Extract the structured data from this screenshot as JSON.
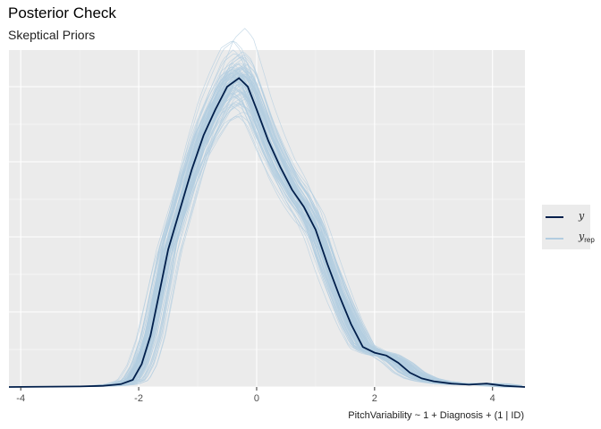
{
  "title": "Posterior Check",
  "subtitle": "Skeptical Priors",
  "chart_data": {
    "type": "density",
    "xlabel": "PitchVariability ~ 1 + Diagnosis + (1 | ID)",
    "xlim": [
      -4.2,
      4.55
    ],
    "x_ticks": [
      -4,
      -2,
      0,
      2,
      4
    ],
    "y_axis_labels": "none",
    "grid": true,
    "legend_position": "right",
    "series": [
      {
        "name": "y",
        "color": "#011f4b",
        "points": [
          [
            -4.2,
            0.0
          ],
          [
            -3.0,
            0.002
          ],
          [
            -2.6,
            0.004
          ],
          [
            -2.3,
            0.01
          ],
          [
            -2.1,
            0.025
          ],
          [
            -1.95,
            0.08
          ],
          [
            -1.8,
            0.18
          ],
          [
            -1.65,
            0.33
          ],
          [
            -1.5,
            0.48
          ],
          [
            -1.3,
            0.62
          ],
          [
            -1.1,
            0.76
          ],
          [
            -0.9,
            0.88
          ],
          [
            -0.7,
            0.97
          ],
          [
            -0.5,
            1.05
          ],
          [
            -0.3,
            1.08
          ],
          [
            -0.15,
            1.05
          ],
          [
            0.0,
            0.97
          ],
          [
            0.2,
            0.86
          ],
          [
            0.4,
            0.77
          ],
          [
            0.6,
            0.69
          ],
          [
            0.8,
            0.63
          ],
          [
            1.0,
            0.55
          ],
          [
            1.2,
            0.43
          ],
          [
            1.4,
            0.32
          ],
          [
            1.6,
            0.22
          ],
          [
            1.8,
            0.14
          ],
          [
            2.0,
            0.12
          ],
          [
            2.2,
            0.11
          ],
          [
            2.4,
            0.085
          ],
          [
            2.6,
            0.05
          ],
          [
            2.8,
            0.03
          ],
          [
            3.0,
            0.02
          ],
          [
            3.3,
            0.012
          ],
          [
            3.6,
            0.008
          ],
          [
            3.9,
            0.012
          ],
          [
            4.2,
            0.004
          ],
          [
            4.55,
            0.0
          ]
        ]
      },
      {
        "name": "y_rep",
        "name_subscript": "rep",
        "color": "#b3cde0",
        "note": "many replicated density draws"
      }
    ]
  },
  "legend": [
    {
      "label": "y",
      "color": "#011f4b"
    },
    {
      "label": "y",
      "subscript": "rep",
      "color": "#b3cde0"
    }
  ]
}
